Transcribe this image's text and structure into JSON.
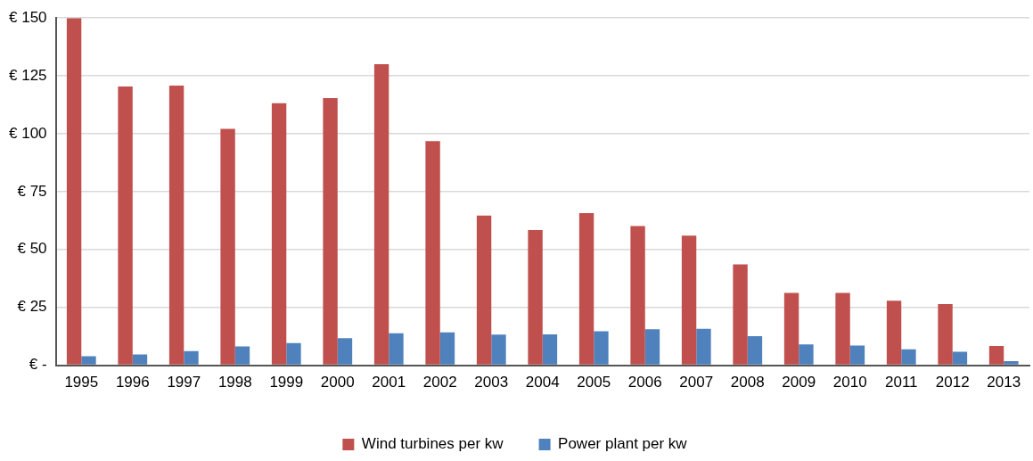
{
  "chart_data": {
    "type": "bar",
    "categories": [
      "1995",
      "1996",
      "1997",
      "1998",
      "1999",
      "2000",
      "2001",
      "2002",
      "2003",
      "2004",
      "2005",
      "2006",
      "2007",
      "2008",
      "2009",
      "2010",
      "2011",
      "2012",
      "2013"
    ],
    "series": [
      {
        "name": "Wind turbines per kw",
        "color": "#c0504d",
        "values": [
          150,
          120.4,
          120.8,
          102.1,
          113.2,
          115.4,
          130,
          96.8,
          64.7,
          58.4,
          65.7,
          60.1,
          56,
          43.6,
          31.2,
          31.2,
          27.9,
          26.4,
          8.3
        ]
      },
      {
        "name": "Power plant per kw",
        "color": "#4f81bd",
        "values": [
          3.9,
          4.7,
          6.1,
          8.1,
          9.6,
          11.7,
          13.8,
          14.2,
          13.2,
          13.3,
          14.7,
          15.5,
          15.7,
          12.6,
          9,
          8.5,
          6.9,
          5.8,
          1.8
        ]
      }
    ],
    "ylim": [
      0,
      150
    ],
    "yticks": [
      {
        "value": 0,
        "label": "€ -"
      },
      {
        "value": 25,
        "label": "€ 25"
      },
      {
        "value": 50,
        "label": "€ 50"
      },
      {
        "value": 75,
        "label": "€ 75"
      },
      {
        "value": 100,
        "label": "€ 100"
      },
      {
        "value": 125,
        "label": "€ 125"
      },
      {
        "value": 150,
        "label": "€ 150"
      }
    ],
    "grid": "y",
    "legend": "bottom"
  }
}
